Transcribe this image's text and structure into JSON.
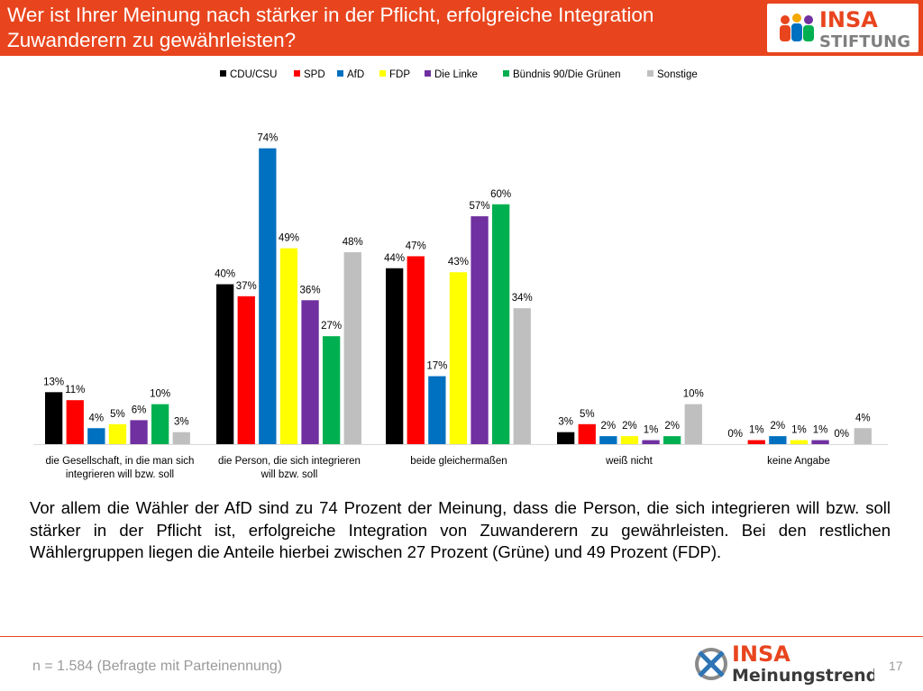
{
  "header": {
    "title": "Wer ist Ihrer Meinung nach stärker in der Pflicht, erfolgreiche Integration Zuwanderern zu gewährleisten?",
    "logo_word": "INSA",
    "logo_sub": "STIFTUNG"
  },
  "colors": {
    "header_bg": "#e8451e",
    "CDU/CSU": "#000000",
    "SPD": "#ff0000",
    "AfD": "#0070c0",
    "FDP": "#ffff00",
    "Die Linke": "#7030a0",
    "Bündnis 90/Die Grünen": "#00b050",
    "Sonstige": "#bfbfbf"
  },
  "chart_data": {
    "type": "bar",
    "categories": [
      "die Gesellschaft, in die man sich integrieren will bzw. soll",
      "die Person, die sich integrieren will bzw. soll",
      "beide gleichermaßen",
      "weiß nicht",
      "keine Angabe"
    ],
    "series": [
      {
        "name": "CDU/CSU",
        "color": "#000000",
        "values": [
          13,
          40,
          44,
          3,
          0
        ]
      },
      {
        "name": "SPD",
        "color": "#ff0000",
        "values": [
          11,
          37,
          47,
          5,
          1
        ]
      },
      {
        "name": "AfD",
        "color": "#0070c0",
        "values": [
          4,
          74,
          17,
          2,
          2
        ]
      },
      {
        "name": "FDP",
        "color": "#ffff00",
        "values": [
          5,
          49,
          43,
          2,
          1
        ]
      },
      {
        "name": "Die Linke",
        "color": "#7030a0",
        "values": [
          6,
          36,
          57,
          1,
          1
        ]
      },
      {
        "name": "Bündnis 90/Die Grünen",
        "color": "#00b050",
        "values": [
          10,
          27,
          60,
          2,
          0
        ]
      },
      {
        "name": "Sonstige",
        "color": "#bfbfbf",
        "values": [
          3,
          48,
          34,
          10,
          4
        ]
      }
    ],
    "unit": "%",
    "ylim": [
      0,
      80
    ],
    "grid": false,
    "legend": "top-center"
  },
  "summary": "Vor allem die Wähler der AfD sind zu 74 Prozent der Meinung, dass die Person, die sich integrieren will bzw. soll stärker in der Pflicht ist, erfolgreiche Integration von Zuwanderern zu gewährleisten. Bei den restlichen Wählergruppen liegen die Anteile hierbei zwischen 27 Prozent (Grüne) und 49 Prozent (FDP).",
  "footer": {
    "note": "n = 1.584 (Befragte mit Parteinennung)",
    "page": "17",
    "logo_word": "INSA",
    "logo_sub": "Meinungstrend"
  }
}
